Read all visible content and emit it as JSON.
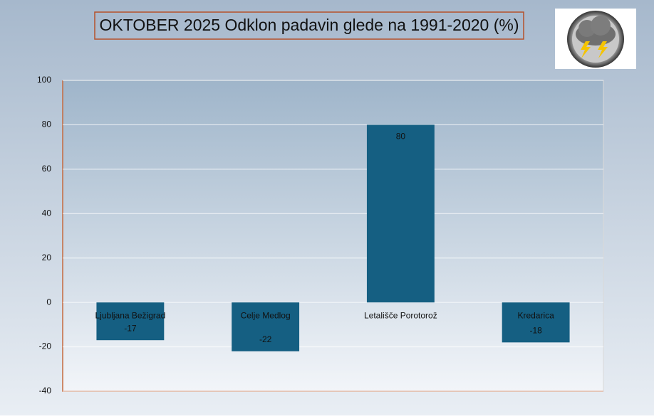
{
  "chart_data": {
    "type": "bar",
    "title": "OKTOBER 2025 Odklon padavin glede na 1991-2020 (%)",
    "categories": [
      "Ljubljana Bežigrad",
      "Celje Medlog",
      "Letališče Porotorož",
      "Kredarica"
    ],
    "values": [
      -17,
      -22,
      80,
      -18
    ],
    "color": "#155f82",
    "ylim": [
      -40,
      100
    ],
    "yticks": [
      -40,
      -20,
      0,
      20,
      40,
      60,
      80,
      100
    ],
    "grid": true
  }
}
